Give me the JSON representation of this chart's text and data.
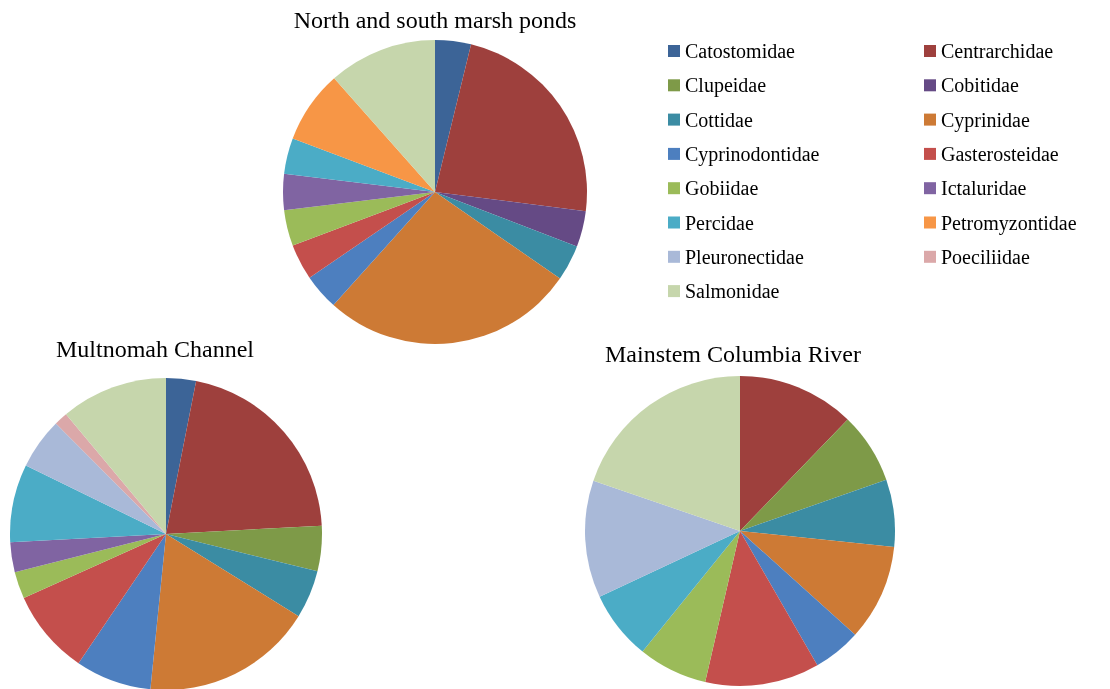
{
  "chart_data": [
    {
      "type": "pie",
      "title": "North and south marsh ponds",
      "legend": "right",
      "categories": [
        "Catostomidae",
        "Centrarchidae",
        "Clupeidae",
        "Cobitidae",
        "Cottidae",
        "Cyprinidae",
        "Cyprinodontidae",
        "Gasterosteidae",
        "Gobiidae",
        "Ictaluridae",
        "Percidae",
        "Petromyzontidae",
        "Pleuronectidae",
        "Poeciliidae",
        "Salmonidae"
      ],
      "values": [
        3.8,
        23.1,
        0,
        3.8,
        3.8,
        26.9,
        3.8,
        3.8,
        3.8,
        3.8,
        3.8,
        7.7,
        0,
        0,
        11.5
      ],
      "colors": [
        "#3c6497",
        "#9e403d",
        "#7e9a48",
        "#654a85",
        "#3b8ca3",
        "#cd7a35",
        "#4d7fbf",
        "#c44f4c",
        "#9bbb59",
        "#8064a2",
        "#4bacc6",
        "#f79646",
        "#a9b9d8",
        "#dba8a9",
        "#c6d6ac"
      ]
    },
    {
      "type": "pie",
      "title": "Multnomah Channel",
      "legend": false,
      "categories": [
        null,
        null,
        null,
        null,
        null,
        null,
        null,
        null,
        null,
        null,
        null,
        null,
        null,
        null,
        null
      ],
      "values": [
        3.1,
        21.1,
        4.7,
        0,
        5.0,
        17.8,
        7.9,
        8.8,
        2.8,
        3.1,
        8.1,
        0,
        5.3,
        1.4,
        11.1
      ],
      "colors": [
        "#3c6497",
        "#9e403d",
        "#7e9a48",
        "#654a85",
        "#3b8ca3",
        "#cd7a35",
        "#4d7fbf",
        "#c44f4c",
        "#9bbb59",
        "#8064a2",
        "#4bacc6",
        "#f79646",
        "#a9b9d8",
        "#dba8a9",
        "#c6d6ac"
      ]
    },
    {
      "type": "pie",
      "title": "Mainstem Columbia River",
      "legend": false,
      "categories": [
        null,
        null,
        null,
        null,
        null,
        null,
        null,
        null,
        null,
        null,
        null,
        null,
        null,
        null,
        null
      ],
      "values": [
        0,
        12.2,
        7.4,
        0,
        7.0,
        10.0,
        5.0,
        11.9,
        7.2,
        0,
        7.2,
        0,
        12.2,
        0,
        19.7
      ],
      "colors": [
        "#3c6497",
        "#9e403d",
        "#7e9a48",
        "#654a85",
        "#3b8ca3",
        "#cd7a35",
        "#4d7fbf",
        "#c44f4c",
        "#9bbb59",
        "#8064a2",
        "#4bacc6",
        "#f79646",
        "#a9b9d8",
        "#dba8a9",
        "#c6d6ac"
      ]
    }
  ]
}
